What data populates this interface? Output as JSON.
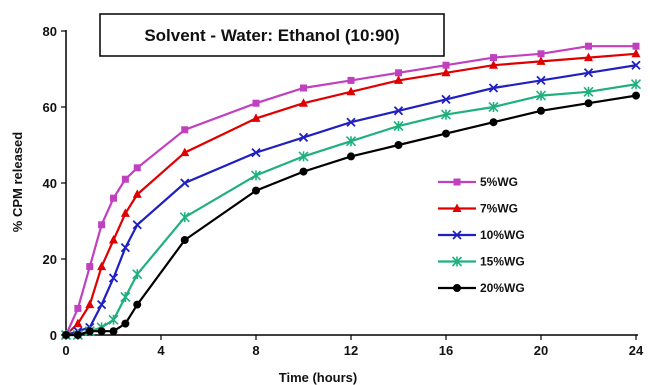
{
  "chart_data": {
    "type": "line",
    "title": "Solvent - Water: Ethanol (10:90)",
    "xlabel": "Time (hours)",
    "ylabel": "% CPM released",
    "xlim": [
      0,
      24
    ],
    "ylim": [
      0,
      80
    ],
    "xticks": [
      0,
      4,
      8,
      12,
      16,
      20,
      24
    ],
    "yticks": [
      0,
      20,
      40,
      60,
      80
    ],
    "grid": false,
    "legend_position": "right",
    "series": [
      {
        "name": "5%WG",
        "color": "#c040c0",
        "marker": "square",
        "x": [
          0,
          0.5,
          1,
          1.5,
          2,
          2.5,
          3,
          5,
          8,
          10,
          12,
          14,
          16,
          18,
          20,
          22,
          24
        ],
        "y": [
          0,
          7,
          18,
          29,
          36,
          41,
          44,
          54,
          61,
          65,
          67,
          69,
          71,
          73,
          74,
          76,
          76
        ]
      },
      {
        "name": "7%WG",
        "color": "#e00000",
        "marker": "triangle",
        "x": [
          0,
          0.5,
          1,
          1.5,
          2,
          2.5,
          3,
          5,
          8,
          10,
          12,
          14,
          16,
          18,
          20,
          22,
          24
        ],
        "y": [
          0,
          3,
          8,
          18,
          25,
          32,
          37,
          48,
          57,
          61,
          64,
          67,
          69,
          71,
          72,
          73,
          74
        ]
      },
      {
        "name": "10%WG",
        "color": "#2020c0",
        "marker": "x",
        "x": [
          0,
          0.5,
          1,
          1.5,
          2,
          2.5,
          3,
          5,
          8,
          10,
          12,
          14,
          16,
          18,
          20,
          22,
          24
        ],
        "y": [
          0,
          1,
          2,
          8,
          15,
          23,
          29,
          40,
          48,
          52,
          56,
          59,
          62,
          65,
          67,
          69,
          71
        ]
      },
      {
        "name": "15%WG",
        "color": "#20b080",
        "marker": "asterisk",
        "x": [
          0,
          0.5,
          1,
          1.5,
          2,
          2.5,
          3,
          5,
          8,
          10,
          12,
          14,
          16,
          18,
          20,
          22,
          24
        ],
        "y": [
          0,
          0,
          1,
          2,
          4,
          10,
          16,
          31,
          42,
          47,
          51,
          55,
          58,
          60,
          63,
          64,
          66
        ]
      },
      {
        "name": "20%WG",
        "color": "#000000",
        "marker": "circle",
        "x": [
          0,
          0.5,
          1,
          1.5,
          2,
          2.5,
          3,
          5,
          8,
          10,
          12,
          14,
          16,
          18,
          20,
          22,
          24
        ],
        "y": [
          0,
          0,
          1,
          1,
          1,
          3,
          8,
          25,
          38,
          43,
          47,
          50,
          53,
          56,
          59,
          61,
          63
        ]
      }
    ]
  }
}
